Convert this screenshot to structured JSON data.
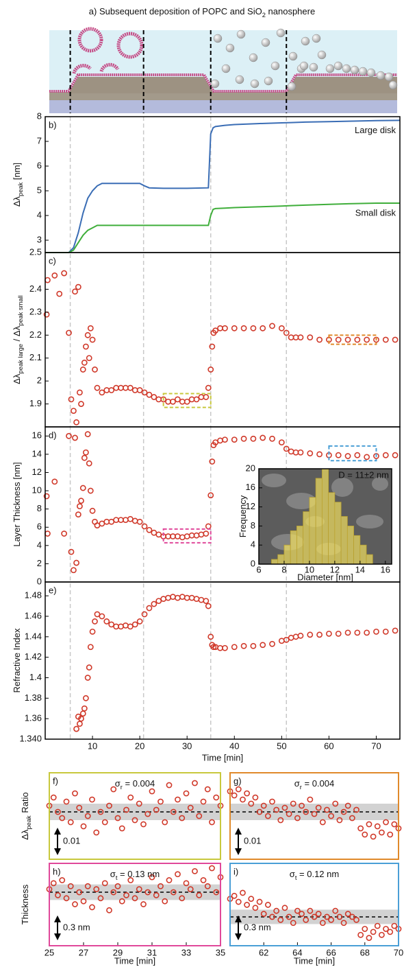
{
  "figure_title": [
    {
      "text": "a)  Subsequent deposition of POPC and SiO"
    },
    {
      "text": "2",
      "sub": true
    },
    {
      "text": " nanosphere"
    }
  ],
  "event_times": [
    5.3,
    20.8,
    35,
    51
  ],
  "chart_data": [
    {
      "type": "line",
      "panel_label": "b)",
      "ylabel": [
        {
          "text": "Δλ"
        },
        {
          "text": "peak",
          "sub": true
        },
        {
          "text": " [nm]"
        }
      ],
      "x": [
        0,
        5,
        6,
        7,
        8,
        9,
        10,
        11,
        12,
        13,
        15,
        17,
        20,
        21,
        22,
        25,
        30,
        34.5,
        35,
        35.5,
        36,
        38,
        40,
        45,
        50,
        52,
        55,
        60,
        65,
        70,
        75
      ],
      "xlim": [
        0,
        75
      ],
      "ylim": [
        2.5,
        8
      ],
      "yticks": [
        2.5,
        3,
        4,
        5,
        6,
        7,
        8
      ],
      "series": [
        {
          "name": "Large disk",
          "color": "#3a6db5",
          "values": [
            2.5,
            2.5,
            2.7,
            3.3,
            4.1,
            4.7,
            5.0,
            5.2,
            5.3,
            5.3,
            5.3,
            5.3,
            5.3,
            5.2,
            5.12,
            5.1,
            5.1,
            5.12,
            7.3,
            7.55,
            7.6,
            7.65,
            7.68,
            7.72,
            7.75,
            7.76,
            7.78,
            7.8,
            7.82,
            7.84,
            7.85
          ]
        },
        {
          "name": "Small disk",
          "color": "#3fae3a",
          "values": [
            2.5,
            2.5,
            2.6,
            2.9,
            3.2,
            3.4,
            3.5,
            3.6,
            3.6,
            3.6,
            3.6,
            3.6,
            3.6,
            3.6,
            3.6,
            3.6,
            3.6,
            3.6,
            4.0,
            4.25,
            4.28,
            4.3,
            4.32,
            4.35,
            4.38,
            4.4,
            4.42,
            4.45,
            4.48,
            4.5,
            4.5
          ]
        }
      ]
    },
    {
      "type": "scatter",
      "panel_label": "c)",
      "ylabel": [
        {
          "text": "Δλ"
        },
        {
          "text": "peak large",
          "sub": true
        },
        {
          "text": " / Δλ"
        },
        {
          "text": "peak small",
          "sub": true
        }
      ],
      "x": [
        0.3,
        0.5,
        2,
        3,
        4,
        5,
        5.5,
        6,
        6.3,
        6.6,
        7,
        7.3,
        7.6,
        8,
        8.3,
        8.6,
        9,
        9.3,
        9.6,
        10,
        10.5,
        11,
        12,
        13,
        14,
        15,
        16,
        17,
        18,
        19,
        20,
        21,
        22,
        23,
        24,
        25,
        26,
        27,
        28,
        29,
        30,
        31,
        32,
        33,
        34,
        34.5,
        35,
        35.3,
        35.6,
        36,
        37,
        38,
        40,
        42,
        44,
        46,
        48,
        50,
        51,
        52,
        53,
        54,
        56,
        58,
        60,
        62,
        64,
        66,
        68,
        70,
        72,
        74
      ],
      "values": [
        2.29,
        2.44,
        2.46,
        2.38,
        2.47,
        2.21,
        1.92,
        1.87,
        2.39,
        1.82,
        2.41,
        1.95,
        1.9,
        2.05,
        2.08,
        2.15,
        2.2,
        2.1,
        2.23,
        2.18,
        2.05,
        1.97,
        1.95,
        1.96,
        1.96,
        1.97,
        1.97,
        1.97,
        1.97,
        1.96,
        1.96,
        1.95,
        1.94,
        1.93,
        1.92,
        1.92,
        1.91,
        1.91,
        1.92,
        1.91,
        1.91,
        1.92,
        1.92,
        1.93,
        1.93,
        1.97,
        2.05,
        2.15,
        2.21,
        2.22,
        2.23,
        2.23,
        2.23,
        2.23,
        2.23,
        2.23,
        2.24,
        2.23,
        2.21,
        2.19,
        2.19,
        2.19,
        2.19,
        2.18,
        2.18,
        2.18,
        2.18,
        2.18,
        2.18,
        2.18,
        2.18,
        2.18
      ],
      "color": "#d0392a",
      "xlim": [
        0,
        75
      ],
      "ylim": [
        1.8,
        2.56
      ],
      "yticks": [
        1.9,
        2,
        2.1,
        2.2,
        2.3,
        2.4
      ],
      "highlights": [
        {
          "color": "#c8c83c",
          "xlim": [
            25,
            35
          ],
          "ylim": [
            1.885,
            1.945
          ]
        },
        {
          "color": "#e0892a",
          "xlim": [
            60,
            70
          ],
          "ylim": [
            2.16,
            2.2
          ]
        }
      ]
    },
    {
      "type": "scatter",
      "panel_label": "d)",
      "ylabel": [
        {
          "text": "Layer Thickness [nm]"
        }
      ],
      "x": [
        0.3,
        0.5,
        2,
        3,
        4,
        5,
        5.5,
        6,
        6.3,
        6.6,
        7,
        7.3,
        7.6,
        8,
        8.3,
        8.6,
        9,
        9.3,
        9.6,
        10,
        10.5,
        11,
        12,
        13,
        14,
        15,
        16,
        17,
        18,
        19,
        20,
        21,
        22,
        23,
        24,
        25,
        26,
        27,
        28,
        29,
        30,
        31,
        32,
        33,
        34,
        34.5,
        35,
        35.3,
        35.6,
        36,
        37,
        38,
        40,
        42,
        44,
        46,
        48,
        50,
        51,
        52,
        53,
        54,
        56,
        58,
        60,
        62,
        64,
        66,
        68,
        70,
        72,
        74
      ],
      "values": [
        9.4,
        5.3,
        11,
        null,
        5.3,
        16,
        3.3,
        1.3,
        15.8,
        2.1,
        7.4,
        8.3,
        8.9,
        10.3,
        13.6,
        14.2,
        16.2,
        13,
        10,
        7.8,
        6.6,
        6.2,
        6.4,
        6.6,
        6.6,
        6.8,
        6.8,
        6.8,
        6.9,
        6.7,
        6.6,
        6.1,
        5.7,
        5.4,
        5.2,
        5,
        5,
        5,
        5,
        4.9,
        5,
        5.1,
        5.1,
        5.2,
        5.3,
        6.1,
        9.5,
        13.2,
        15,
        15.3,
        15.5,
        15.6,
        15.6,
        15.7,
        15.7,
        15.8,
        15.7,
        15.3,
        14.6,
        14.3,
        14.2,
        14.2,
        14.1,
        14,
        13.9,
        13.9,
        13.8,
        13.9,
        13.7,
        13.8,
        13.9,
        13.9
      ],
      "color": "#d0392a",
      "xlim": [
        0,
        75
      ],
      "ylim": [
        0,
        17
      ],
      "yticks": [
        0,
        2,
        4,
        6,
        8,
        10,
        12,
        14,
        16
      ],
      "highlights": [
        {
          "color": "#e0489a",
          "xlim": [
            25,
            35
          ],
          "ylim": [
            4.3,
            5.8
          ]
        },
        {
          "color": "#4a9fd6",
          "xlim": [
            60,
            70
          ],
          "ylim": [
            13.3,
            14.9
          ]
        }
      ]
    },
    {
      "type": "histogram",
      "annotation": "D = 11±2 nm",
      "ylabel": [
        {
          "text": "Frequency"
        }
      ],
      "xlabel": "Diameter [nm]",
      "bins": [
        7,
        7.5,
        8,
        8.5,
        9,
        9.5,
        10,
        10.5,
        11,
        11.5,
        12,
        12.5,
        13,
        13.5,
        14,
        14.5,
        15
      ],
      "counts": [
        1,
        2,
        4,
        7,
        8,
        11,
        14,
        18,
        20,
        15,
        13,
        10,
        8,
        6,
        4,
        2
      ],
      "color": "#f2e060",
      "xlim": [
        6,
        16.5
      ],
      "ylim": [
        0,
        20
      ],
      "xticks": [
        6,
        8,
        10,
        12,
        14,
        16
      ],
      "yticks": [
        0,
        4,
        8,
        12,
        16,
        20
      ]
    },
    {
      "type": "scatter",
      "panel_label": "e)",
      "ylabel": [
        {
          "text": "Refractive Index"
        }
      ],
      "xlabel": "Time [min]",
      "x": [
        0.3,
        0.5,
        2,
        3,
        4,
        5,
        5.5,
        6,
        6.3,
        6.6,
        7,
        7.3,
        7.6,
        8,
        8.3,
        8.6,
        9,
        9.3,
        9.6,
        10,
        10.5,
        11,
        12,
        13,
        14,
        15,
        16,
        17,
        18,
        19,
        20,
        21,
        22,
        23,
        24,
        25,
        26,
        27,
        28,
        29,
        30,
        31,
        32,
        33,
        34,
        34.5,
        35,
        35.3,
        35.6,
        36,
        37,
        38,
        40,
        42,
        44,
        46,
        48,
        50,
        51,
        52,
        53,
        54,
        56,
        58,
        60,
        62,
        64,
        66,
        68,
        70,
        72,
        74
      ],
      "values": [
        null,
        null,
        null,
        null,
        null,
        null,
        null,
        null,
        null,
        1.35,
        1.362,
        1.355,
        1.36,
        1.365,
        1.37,
        1.38,
        1.4,
        1.41,
        1.43,
        1.445,
        1.455,
        1.462,
        1.46,
        1.455,
        1.452,
        1.45,
        1.45,
        1.451,
        1.45,
        1.452,
        1.455,
        1.462,
        1.468,
        1.472,
        1.475,
        1.477,
        1.478,
        1.479,
        1.478,
        1.479,
        1.478,
        1.478,
        1.477,
        1.476,
        1.475,
        1.47,
        1.44,
        1.432,
        1.43,
        1.43,
        1.429,
        1.429,
        1.43,
        1.431,
        1.431,
        1.432,
        1.433,
        1.436,
        1.437,
        1.439,
        1.44,
        1.441,
        1.442,
        1.442,
        1.443,
        1.443,
        1.444,
        1.444,
        1.444,
        1.445,
        1.445,
        1.446
      ],
      "color": "#d0392a",
      "xlim": [
        0,
        75
      ],
      "ylim": [
        1.34,
        1.4935
      ],
      "yticks": [
        {
          "value": 1.34,
          "label": "1.340"
        },
        1.36,
        1.38,
        1.4,
        1.42,
        1.44,
        1.46,
        1.48
      ],
      "xticks": [
        10,
        20,
        30,
        40,
        50,
        60,
        70
      ]
    },
    {
      "type": "scatter",
      "panel_label": "f)",
      "frame_color": "#c8c83c",
      "color": "#d0392a",
      "ylabel": [
        {
          "text": "Δλ"
        },
        {
          "text": "peak",
          "sub": true
        },
        {
          "text": " Ratio"
        }
      ],
      "x": [
        25,
        25.25,
        25.5,
        25.75,
        26,
        26.25,
        26.5,
        26.75,
        27,
        27.25,
        27.5,
        27.75,
        28,
        28.25,
        28.5,
        28.75,
        29,
        29.25,
        29.5,
        29.75,
        30,
        30.25,
        30.5,
        30.75,
        31,
        31.25,
        31.5,
        31.75,
        32,
        32.25,
        32.5,
        32.75,
        33,
        33.25,
        33.5,
        33.75,
        34,
        34.25,
        34.5,
        34.75,
        35
      ],
      "values": [
        1.918,
        1.922,
        1.915,
        1.912,
        1.92,
        1.91,
        1.924,
        1.917,
        1.908,
        1.913,
        1.921,
        1.905,
        1.915,
        1.91,
        1.918,
        1.926,
        1.912,
        1.907,
        1.916,
        1.922,
        1.911,
        1.919,
        1.909,
        1.914,
        1.925,
        1.916,
        1.92,
        1.91,
        1.928,
        1.915,
        1.921,
        1.912,
        1.924,
        1.917,
        1.929,
        1.913,
        1.92,
        1.926,
        1.91,
        1.922,
        1.918
      ],
      "xlim": [
        25,
        35
      ],
      "ylim": [
        1.892,
        1.934
      ],
      "mean": 1.915,
      "sigma": 0.004,
      "sigma_label": [
        {
          "text": "σ"
        },
        {
          "text": "r",
          "sub": true
        },
        {
          "text": " = 0.004"
        }
      ],
      "scale_bar": 0.01
    },
    {
      "type": "scatter",
      "panel_label": "g)",
      "frame_color": "#e0892a",
      "color": "#d0392a",
      "x": [
        60,
        60.25,
        60.5,
        60.75,
        61,
        61.25,
        61.5,
        61.75,
        62,
        62.25,
        62.5,
        62.75,
        63,
        63.25,
        63.5,
        63.75,
        64,
        64.25,
        64.5,
        64.75,
        65,
        65.25,
        65.5,
        65.75,
        66,
        66.25,
        66.5,
        66.75,
        67,
        67.25,
        67.5,
        67.75,
        68,
        68.25,
        68.5,
        68.75,
        69,
        69.25,
        69.5,
        69.75,
        70
      ],
      "values": [
        2.19,
        2.188,
        2.191,
        2.186,
        2.189,
        2.184,
        2.187,
        2.18,
        2.183,
        2.178,
        2.185,
        2.181,
        2.176,
        2.182,
        2.179,
        2.184,
        2.177,
        2.183,
        2.18,
        2.186,
        2.179,
        2.182,
        2.175,
        2.181,
        2.178,
        2.184,
        2.176,
        2.18,
        2.183,
        2.177,
        2.181,
        2.172,
        2.169,
        2.174,
        2.168,
        2.173,
        2.17,
        2.175,
        2.169,
        2.174,
        2.172
      ],
      "xlim": [
        60,
        70
      ],
      "ylim": [
        2.157,
        2.199
      ],
      "mean": 2.18,
      "sigma": 0.004,
      "sigma_label": [
        {
          "text": "σ"
        },
        {
          "text": "r",
          "sub": true
        },
        {
          "text": " = 0.004"
        }
      ],
      "scale_bar": 0.01
    },
    {
      "type": "scatter",
      "panel_label": "h)",
      "frame_color": "#e0489a",
      "color": "#d0392a",
      "ylabel": [
        {
          "text": "Thickness"
        }
      ],
      "xlabel": "Time [min]",
      "x": [
        25,
        25.25,
        25.5,
        25.75,
        26,
        26.25,
        26.5,
        26.75,
        27,
        27.25,
        27.5,
        27.75,
        28,
        28.25,
        28.5,
        28.75,
        29,
        29.25,
        29.5,
        29.75,
        30,
        30.25,
        30.5,
        30.75,
        31,
        31.25,
        31.5,
        31.75,
        32,
        32.25,
        32.5,
        32.75,
        33,
        33.25,
        33.5,
        33.75,
        34,
        34.25,
        34.5,
        34.75,
        35
      ],
      "values": [
        5.05,
        5.15,
        4.95,
        5.2,
        4.9,
        5.1,
        4.8,
        5.0,
        4.85,
        5.1,
        4.75,
        5.05,
        4.9,
        5.15,
        4.7,
        5.0,
        5.1,
        4.85,
        4.95,
        5.2,
        4.9,
        5.05,
        4.8,
        5.0,
        5.25,
        4.95,
        5.1,
        4.85,
        5.2,
        5.0,
        5.3,
        4.9,
        5.15,
        5.05,
        5.35,
        4.95,
        5.2,
        5.1,
        5.4,
        5.0,
        5.25
      ],
      "xlim": [
        25,
        35
      ],
      "ylim": [
        4.11,
        5.48
      ],
      "xticks": [
        25,
        27,
        29,
        31,
        33,
        35
      ],
      "mean": 5.0,
      "sigma": 0.13,
      "sigma_label": [
        {
          "text": "σ"
        },
        {
          "text": "t",
          "sub": true
        },
        {
          "text": " = 0.13 nm"
        }
      ],
      "scale_bar": {
        "value": 0.3,
        "label": "0.3 nm"
      }
    },
    {
      "type": "scatter",
      "panel_label": "i)",
      "frame_color": "#4a9fd6",
      "color": "#d0392a",
      "xlabel": "Time [min]",
      "x": [
        60,
        60.25,
        60.5,
        60.75,
        61,
        61.25,
        61.5,
        61.75,
        62,
        62.25,
        62.5,
        62.75,
        63,
        63.25,
        63.5,
        63.75,
        64,
        64.25,
        64.5,
        64.75,
        65,
        65.25,
        65.5,
        65.75,
        66,
        66.25,
        66.5,
        66.75,
        67,
        67.25,
        67.5,
        67.75,
        68,
        68.25,
        68.5,
        68.75,
        69,
        69.25,
        69.5,
        69.75,
        70
      ],
      "values": [
        14.2,
        14.25,
        14.15,
        14.3,
        14.1,
        14.2,
        14.05,
        14.15,
        13.95,
        14.1,
        13.9,
        14.0,
        13.85,
        14.05,
        13.9,
        13.8,
        14.0,
        13.95,
        13.85,
        14.0,
        13.9,
        13.95,
        13.8,
        13.9,
        13.85,
        14.0,
        13.9,
        13.8,
        13.95,
        13.9,
        13.85,
        13.6,
        13.7,
        13.55,
        13.65,
        13.75,
        13.6,
        13.7,
        13.65,
        13.75,
        13.7
      ],
      "xlim": [
        60,
        70
      ],
      "ylim": [
        13.42,
        14.79
      ],
      "xticks": [
        62,
        64,
        66,
        68,
        70
      ],
      "mean": 13.9,
      "sigma": 0.12,
      "sigma_label": [
        {
          "text": "σ"
        },
        {
          "text": "t",
          "sub": true
        },
        {
          "text": " = 0.12 nm"
        }
      ],
      "scale_bar": {
        "value": 0.3,
        "label": "0.3 nm"
      }
    }
  ]
}
